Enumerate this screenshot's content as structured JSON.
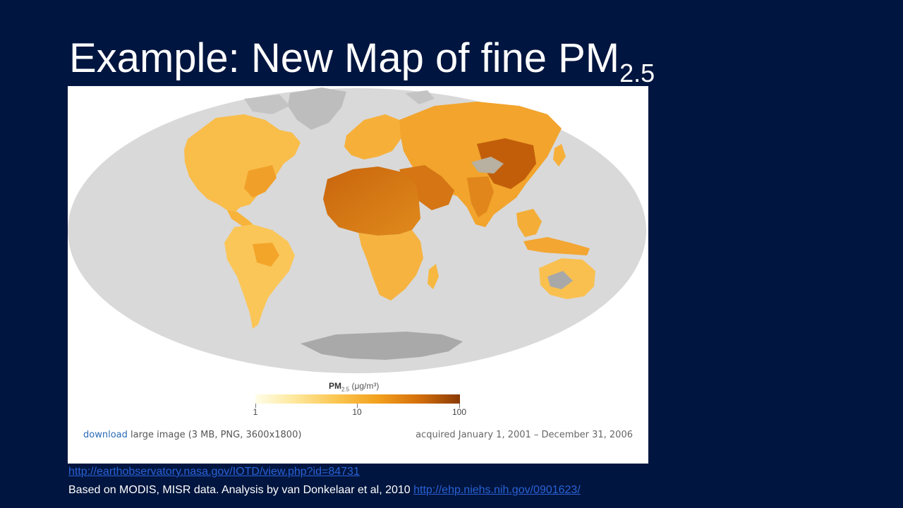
{
  "slide": {
    "title_main": "Example: New Map of fine PM",
    "title_sub": "2.5"
  },
  "map": {
    "legend": {
      "title_main": "PM",
      "title_sub": "2.5",
      "title_units": " (μg/m³)",
      "ticks": [
        "1",
        "10",
        "100"
      ],
      "colors": [
        "#fffde8",
        "#fde9a0",
        "#fbc550",
        "#f2a01e",
        "#d46f0c",
        "#8a3a04"
      ]
    },
    "caption": {
      "download_link": "download",
      "download_text": " large image (3 MB, PNG, 3600x1800)",
      "acquired": "acquired January 1, 2001 – December 31, 2006"
    },
    "colors": {
      "ocean": "#d9d9d9",
      "antarctica": "#a9a9a9",
      "ice": "#bdbdbd",
      "land_low": "#fbc24e",
      "land_mid": "#f3a52a",
      "land_high": "#d97614",
      "land_max": "#b35a08"
    }
  },
  "footer": {
    "source_url": "http://earthobservatory.nasa.gov/IOTD/view.php?id=84731",
    "credit_text": "Based on MODIS, MISR data. Analysis by van Donkelaar et al, 2010 ",
    "credit_url": "http://ehp.niehs.nih.gov/0901623/"
  }
}
